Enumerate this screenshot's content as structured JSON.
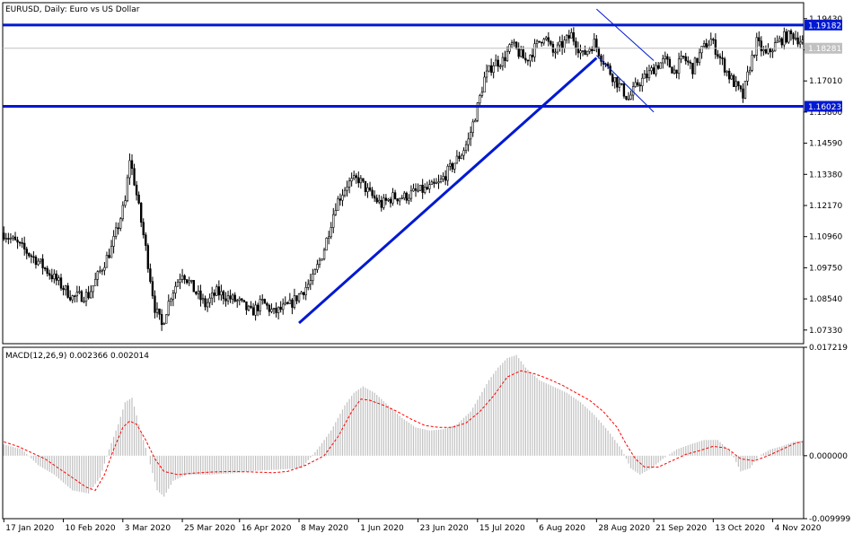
{
  "chart_data": [
    {
      "type": "candlestick",
      "title": "EURUSD, Daily: Euro vs US Dollar",
      "y_axis_ticks": [
        "1.19430",
        "1.18220",
        "1.17010",
        "1.15800",
        "1.14590",
        "1.13380",
        "1.12170",
        "1.10960",
        "1.09750",
        "1.08540",
        "1.07330"
      ],
      "ylim": [
        1.068,
        1.2005
      ],
      "x_axis_labels": [
        "17 Jan 2020",
        "10 Feb 2020",
        "3 Mar 2020",
        "25 Mar 2020",
        "16 Apr 2020",
        "8 May 2020",
        "1 Jun 2020",
        "23 Jun 2020",
        "15 Jul 2020",
        "6 Aug 2020",
        "28 Aug 2020",
        "21 Sep 2020",
        "13 Oct 2020",
        "4 Nov 2020"
      ],
      "horizontal_levels": [
        {
          "value": 1.19182,
          "label": "1.19182",
          "color": "#0019d2"
        },
        {
          "value": 1.16023,
          "label": "1.16023",
          "color": "#0019d2"
        }
      ],
      "current_price": {
        "value": 1.18281,
        "label": "1.18281",
        "color": "#c0c0c0"
      },
      "trendlines": [
        {
          "name": "uptrend",
          "color": "#0019d2",
          "from": [
            "8 May 2020",
            1.076
          ],
          "to": [
            "28 Aug 2020",
            1.179
          ]
        },
        {
          "name": "channel-upper",
          "color": "#0019d2",
          "from": [
            "28 Aug 2020",
            1.198
          ],
          "to": [
            "21 Sep 2020",
            1.178
          ]
        },
        {
          "name": "channel-lower",
          "color": "#0019d2",
          "from": [
            "28 Aug 2020",
            1.18
          ],
          "to": [
            "21 Sep 2020",
            1.158
          ]
        }
      ],
      "trend": [
        [
          0,
          1.111
        ],
        [
          15,
          1.1
        ],
        [
          30,
          1.086
        ],
        [
          37,
          1.087
        ],
        [
          42,
          1.096
        ],
        [
          47,
          1.105
        ],
        [
          53,
          1.123
        ],
        [
          55,
          1.14
        ],
        [
          57,
          1.131
        ],
        [
          62,
          1.105
        ],
        [
          66,
          1.082
        ],
        [
          69,
          1.075
        ],
        [
          73,
          1.087
        ],
        [
          78,
          1.096
        ],
        [
          83,
          1.089
        ],
        [
          88,
          1.083
        ],
        [
          93,
          1.088
        ],
        [
          98,
          1.086
        ],
        [
          103,
          1.084
        ],
        [
          108,
          1.08
        ],
        [
          113,
          1.084
        ],
        [
          118,
          1.08
        ],
        [
          125,
          1.083
        ],
        [
          130,
          1.088
        ],
        [
          135,
          1.093
        ],
        [
          140,
          1.105
        ],
        [
          145,
          1.122
        ],
        [
          150,
          1.13
        ],
        [
          155,
          1.132
        ],
        [
          160,
          1.126
        ],
        [
          165,
          1.122
        ],
        [
          170,
          1.125
        ],
        [
          175,
          1.125
        ],
        [
          180,
          1.127
        ],
        [
          185,
          1.128
        ],
        [
          190,
          1.13
        ],
        [
          195,
          1.136
        ],
        [
          200,
          1.142
        ],
        [
          203,
          1.147
        ],
        [
          207,
          1.16
        ],
        [
          210,
          1.171
        ],
        [
          214,
          1.177
        ],
        [
          218,
          1.178
        ],
        [
          222,
          1.184
        ],
        [
          228,
          1.178
        ],
        [
          233,
          1.184
        ],
        [
          236,
          1.188
        ],
        [
          240,
          1.181
        ],
        [
          244,
          1.184
        ],
        [
          248,
          1.188
        ],
        [
          253,
          1.18
        ],
        [
          258,
          1.185
        ],
        [
          262,
          1.178
        ],
        [
          266,
          1.172
        ],
        [
          270,
          1.167
        ],
        [
          273,
          1.163
        ],
        [
          277,
          1.169
        ],
        [
          281,
          1.172
        ],
        [
          285,
          1.176
        ],
        [
          289,
          1.178
        ],
        [
          293,
          1.174
        ],
        [
          297,
          1.179
        ],
        [
          301,
          1.175
        ],
        [
          305,
          1.182
        ],
        [
          309,
          1.186
        ],
        [
          313,
          1.179
        ],
        [
          317,
          1.172
        ],
        [
          320,
          1.168
        ],
        [
          323,
          1.164
        ],
        [
          326,
          1.176
        ],
        [
          329,
          1.185
        ],
        [
          333,
          1.18
        ],
        [
          337,
          1.184
        ],
        [
          341,
          1.187
        ],
        [
          345,
          1.188
        ],
        [
          349,
          1.185
        ]
      ]
    },
    {
      "type": "macd",
      "label": "MACD(12,26,9) 0.002366 0.002014",
      "y_axis_ticks": [
        "0.017219",
        "0.000000",
        "-0.009999"
      ],
      "ylim": [
        -0.009999,
        0.017219
      ],
      "histogram_color": "#c0c0c0",
      "signal_color": "#ff0000",
      "histogram": [
        [
          0,
          0.0018
        ],
        [
          8,
          0.001
        ],
        [
          15,
          -0.0015
        ],
        [
          22,
          -0.003
        ],
        [
          30,
          -0.0055
        ],
        [
          37,
          -0.006
        ],
        [
          42,
          -0.0035
        ],
        [
          46,
          0.001
        ],
        [
          50,
          0.005
        ],
        [
          53,
          0.0085
        ],
        [
          56,
          0.0092
        ],
        [
          59,
          0.005
        ],
        [
          63,
          0.0
        ],
        [
          67,
          -0.0055
        ],
        [
          70,
          -0.0065
        ],
        [
          74,
          -0.004
        ],
        [
          80,
          -0.003
        ],
        [
          90,
          -0.003
        ],
        [
          100,
          -0.0028
        ],
        [
          110,
          -0.0024
        ],
        [
          120,
          -0.0022
        ],
        [
          130,
          -0.002
        ],
        [
          137,
          0.001
        ],
        [
          143,
          0.004
        ],
        [
          149,
          0.008
        ],
        [
          153,
          0.01
        ],
        [
          157,
          0.011
        ],
        [
          162,
          0.01
        ],
        [
          168,
          0.008
        ],
        [
          174,
          0.006
        ],
        [
          180,
          0.0045
        ],
        [
          186,
          0.004
        ],
        [
          192,
          0.0042
        ],
        [
          198,
          0.005
        ],
        [
          204,
          0.007
        ],
        [
          208,
          0.0095
        ],
        [
          212,
          0.012
        ],
        [
          216,
          0.014
        ],
        [
          220,
          0.0155
        ],
        [
          224,
          0.016
        ],
        [
          228,
          0.014
        ],
        [
          234,
          0.012
        ],
        [
          240,
          0.011
        ],
        [
          246,
          0.01
        ],
        [
          252,
          0.0085
        ],
        [
          258,
          0.0065
        ],
        [
          264,
          0.004
        ],
        [
          270,
          0.001
        ],
        [
          274,
          -0.002
        ],
        [
          278,
          -0.003
        ],
        [
          283,
          -0.002
        ],
        [
          288,
          -0.0005
        ],
        [
          294,
          0.001
        ],
        [
          300,
          0.0018
        ],
        [
          306,
          0.0025
        ],
        [
          312,
          0.0025
        ],
        [
          318,
          0.0005
        ],
        [
          322,
          -0.0025
        ],
        [
          326,
          -0.002
        ],
        [
          330,
          0.0
        ],
        [
          335,
          0.001
        ],
        [
          340,
          0.0015
        ],
        [
          345,
          0.0022
        ],
        [
          349,
          0.0024
        ]
      ],
      "signal": [
        [
          0,
          0.0022
        ],
        [
          6,
          0.0015
        ],
        [
          12,
          0.0005
        ],
        [
          18,
          -0.0005
        ],
        [
          24,
          -0.002
        ],
        [
          30,
          -0.0035
        ],
        [
          36,
          -0.005
        ],
        [
          40,
          -0.0055
        ],
        [
          44,
          -0.003
        ],
        [
          48,
          0.001
        ],
        [
          52,
          0.0045
        ],
        [
          55,
          0.0055
        ],
        [
          58,
          0.005
        ],
        [
          62,
          0.0025
        ],
        [
          66,
          -0.0005
        ],
        [
          70,
          -0.0025
        ],
        [
          76,
          -0.003
        ],
        [
          82,
          -0.0028
        ],
        [
          90,
          -0.0026
        ],
        [
          100,
          -0.0025
        ],
        [
          110,
          -0.0026
        ],
        [
          118,
          -0.0027
        ],
        [
          124,
          -0.0025
        ],
        [
          132,
          -0.0015
        ],
        [
          140,
          0.0
        ],
        [
          146,
          0.003
        ],
        [
          152,
          0.007
        ],
        [
          156,
          0.009
        ],
        [
          160,
          0.0088
        ],
        [
          166,
          0.008
        ],
        [
          172,
          0.007
        ],
        [
          178,
          0.0058
        ],
        [
          184,
          0.0048
        ],
        [
          190,
          0.0045
        ],
        [
          196,
          0.0045
        ],
        [
          202,
          0.0052
        ],
        [
          208,
          0.007
        ],
        [
          214,
          0.0095
        ],
        [
          220,
          0.0125
        ],
        [
          226,
          0.0135
        ],
        [
          232,
          0.013
        ],
        [
          238,
          0.0122
        ],
        [
          244,
          0.0112
        ],
        [
          250,
          0.01
        ],
        [
          256,
          0.0088
        ],
        [
          262,
          0.007
        ],
        [
          268,
          0.0045
        ],
        [
          272,
          0.0018
        ],
        [
          276,
          -0.0005
        ],
        [
          280,
          -0.0018
        ],
        [
          286,
          -0.0018
        ],
        [
          292,
          -0.0008
        ],
        [
          298,
          0.0002
        ],
        [
          304,
          0.0008
        ],
        [
          310,
          0.0015
        ],
        [
          316,
          0.0012
        ],
        [
          322,
          -0.0005
        ],
        [
          328,
          -0.0008
        ],
        [
          334,
          0.0
        ],
        [
          340,
          0.001
        ],
        [
          346,
          0.002
        ],
        [
          349,
          0.0022
        ]
      ]
    }
  ]
}
